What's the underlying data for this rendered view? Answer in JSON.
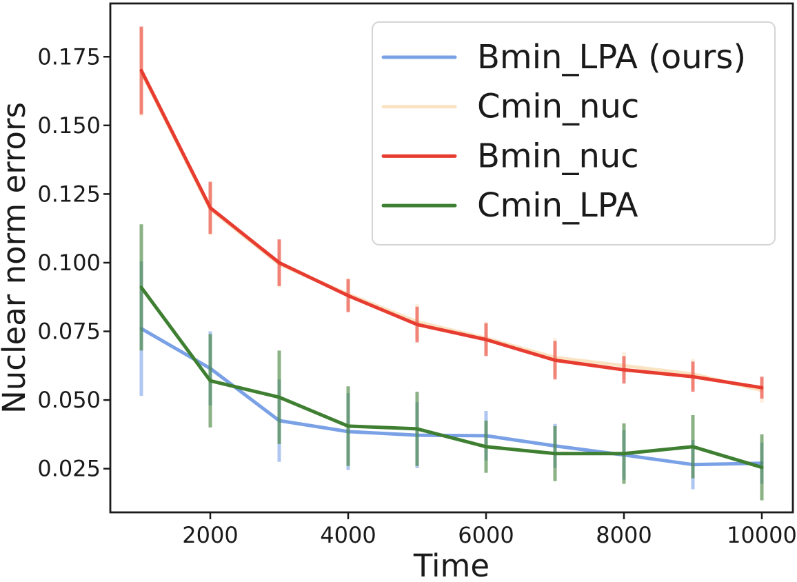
{
  "chart_data": {
    "type": "line",
    "title": "",
    "xlabel": "Time",
    "ylabel": "Nuclear norm errors",
    "x": [
      1000,
      2000,
      3000,
      4000,
      5000,
      6000,
      7000,
      8000,
      9000,
      10000
    ],
    "series": [
      {
        "name": "Bmin_LPA (ours)",
        "color": "#7aa1e6",
        "values": [
          0.076,
          0.0615,
          0.0425,
          0.0385,
          0.0372,
          0.037,
          0.0333,
          0.03,
          0.0265,
          0.027
        ],
        "err": [
          0.0245,
          0.0135,
          0.015,
          0.014,
          0.012,
          0.009,
          0.008,
          0.009,
          0.009,
          0.0075
        ]
      },
      {
        "name": "Cmin_nuc",
        "color": "#fae3c3",
        "values": [
          0.1695,
          0.1195,
          0.0995,
          0.0885,
          0.0785,
          0.0725,
          0.0655,
          0.0625,
          0.0595,
          0.0535
        ],
        "err": [
          0.016,
          0.0095,
          0.0085,
          0.006,
          0.0065,
          0.006,
          0.007,
          0.005,
          0.0055,
          0.0045
        ]
      },
      {
        "name": "Bmin_nuc",
        "color": "#e73c30",
        "values": [
          0.17,
          0.12,
          0.1,
          0.088,
          0.0775,
          0.072,
          0.0645,
          0.061,
          0.0585,
          0.0545
        ],
        "err": [
          0.016,
          0.0095,
          0.0085,
          0.006,
          0.0065,
          0.006,
          0.007,
          0.005,
          0.0055,
          0.004
        ]
      },
      {
        "name": "Cmin_LPA",
        "color": "#3e7f32",
        "values": [
          0.091,
          0.057,
          0.051,
          0.0405,
          0.0395,
          0.033,
          0.0305,
          0.0305,
          0.033,
          0.0255
        ],
        "err": [
          0.023,
          0.017,
          0.017,
          0.0145,
          0.0135,
          0.0095,
          0.01,
          0.011,
          0.0115,
          0.012
        ]
      }
    ],
    "xticks": {
      "values": [
        2000,
        4000,
        6000,
        8000,
        10000
      ],
      "labels": [
        "2000",
        "4000",
        "6000",
        "8000",
        "10000"
      ]
    },
    "yticks": {
      "values": [
        0.025,
        0.05,
        0.075,
        0.1,
        0.125,
        0.15,
        0.175
      ],
      "labels": [
        "0.025",
        "0.050",
        "0.075",
        "0.100",
        "0.125",
        "0.150",
        "0.175"
      ]
    },
    "xlim": [
      550,
      10450
    ],
    "ylim": [
      0.0091,
      0.1944
    ],
    "grid": false,
    "legend": {
      "position": "upper right",
      "entries": [
        "Bmin_LPA (ours)",
        "Cmin_nuc",
        "Bmin_nuc",
        "Cmin_LPA"
      ]
    },
    "style": {
      "background": "#ffffff",
      "frame_color": "#1a1a1a",
      "text_color": "#1a1a1a",
      "legend_border_color": "#d4d4d4",
      "line_width": 5,
      "error_bar_width": 5,
      "error_bar_opacity": 0.6
    }
  }
}
